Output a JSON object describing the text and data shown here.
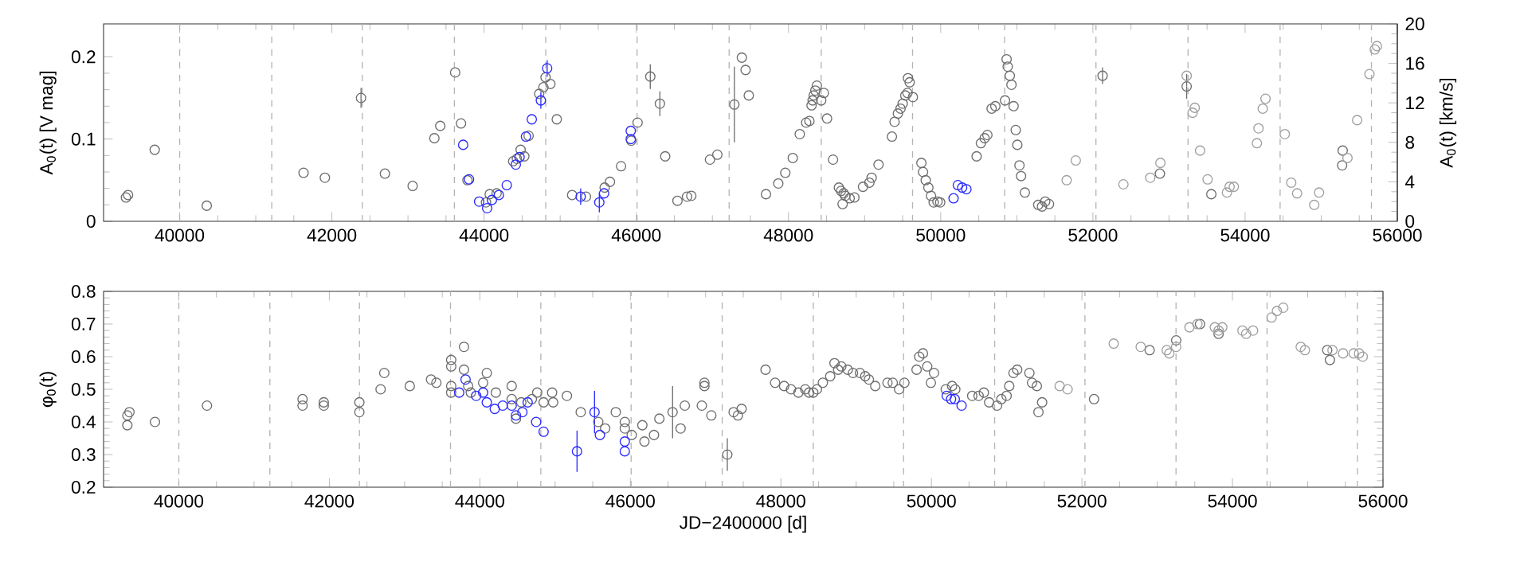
{
  "chart_data": [
    {
      "type": "scatter",
      "ylabel": "A$_{0}$(t) [V mag]",
      "y2label": "A$_{0}$(t) [km/s]",
      "xlim": [
        39000,
        56000
      ],
      "xticks": [
        40000,
        42000,
        44000,
        46000,
        48000,
        50000,
        52000,
        54000,
        56000
      ],
      "ylim": [
        0,
        0.24
      ],
      "yticks": [
        0,
        0.1,
        0.2
      ],
      "y2lim": [
        0,
        20
      ],
      "y2ticks": [
        0,
        4,
        8,
        12,
        16,
        20
      ],
      "series": [
        {
          "color": "#6e6e6e",
          "marker": "circle",
          "x": [
            47289,
            46184,
            46310,
            42383,
            39294,
            39322,
            39672,
            40356,
            41628,
            41908,
            42697,
            43061,
            43347,
            43424,
            43620,
            43697,
            43781,
            44025,
            44074,
            44165,
            44382,
            44431,
            44480,
            44529,
            44585,
            44724,
            44780,
            44808,
            44871,
            44955,
            45157,
            45339,
            45584,
            45654,
            45800,
            45933,
            46017,
            46380,
            46541,
            46667,
            46723,
            46968,
            47065,
            47387,
            47436,
            47478,
            47704,
            47866,
            47958,
            48056,
            48148,
            48232,
            48275,
            48303,
            48317,
            48331,
            48352,
            48373,
            48430,
            48465,
            48507,
            48585,
            48662,
            48690,
            48711,
            48725,
            48746,
            48803,
            48866,
            48979,
            49063,
            49092,
            49183,
            49359,
            49394,
            49437,
            49472,
            49500,
            49535,
            49563,
            49570,
            49592,
            49634,
            49746,
            49768,
            49803,
            49838,
            49873,
            49908,
            49958,
            49993,
            50472,
            50528,
            50577,
            50613,
            50669,
            50718,
            50845,
            50866,
            50880,
            50908,
            50930,
            50958,
            50986,
            51007,
            51035,
            51056,
            51106,
            51282,
            51331,
            51373,
            51423,
            52127,
            52880,
            53232,
            53556,
            55275,
            55282
          ],
          "values": [
            0.142,
            0.176,
            0.143,
            0.15,
            0.029,
            0.032,
            0.087,
            0.019,
            0.059,
            0.053,
            0.058,
            0.043,
            0.101,
            0.116,
            0.181,
            0.119,
            0.05,
            0.023,
            0.033,
            0.034,
            0.073,
            0.076,
            0.087,
            0.079,
            0.104,
            0.155,
            0.163,
            0.175,
            0.167,
            0.124,
            0.032,
            0.03,
            0.041,
            0.048,
            0.067,
            0.098,
            0.12,
            0.079,
            0.025,
            0.03,
            0.031,
            0.075,
            0.081,
            0.199,
            0.184,
            0.153,
            0.033,
            0.046,
            0.059,
            0.077,
            0.106,
            0.12,
            0.122,
            0.141,
            0.147,
            0.153,
            0.159,
            0.165,
            0.147,
            0.156,
            0.125,
            0.075,
            0.041,
            0.037,
            0.021,
            0.034,
            0.031,
            0.028,
            0.029,
            0.042,
            0.047,
            0.053,
            0.069,
            0.103,
            0.121,
            0.131,
            0.137,
            0.143,
            0.153,
            0.156,
            0.174,
            0.169,
            0.151,
            0.071,
            0.06,
            0.05,
            0.041,
            0.031,
            0.023,
            0.024,
            0.023,
            0.079,
            0.095,
            0.101,
            0.105,
            0.137,
            0.14,
            0.147,
            0.197,
            0.188,
            0.177,
            0.166,
            0.14,
            0.111,
            0.093,
            0.068,
            0.055,
            0.035,
            0.02,
            0.018,
            0.024,
            0.021,
            0.177,
            0.058,
            0.164,
            0.033,
            0.068,
            0.086
          ],
          "errors": [
            0.046,
            0.015,
            0.015,
            0.012,
            null,
            null,
            null,
            null,
            null,
            null,
            null,
            null,
            null,
            null,
            null,
            null,
            null,
            null,
            null,
            null,
            null,
            null,
            null,
            null,
            null,
            null,
            null,
            null,
            null,
            null,
            null,
            null,
            null,
            null,
            null,
            null,
            null,
            null,
            null,
            null,
            null,
            null,
            null,
            null,
            null,
            null,
            null,
            null,
            null,
            null,
            null,
            null,
            null,
            null,
            null,
            null,
            null,
            null,
            null,
            null,
            null,
            null,
            null,
            null,
            null,
            null,
            null,
            null,
            null,
            null,
            null,
            null,
            null,
            null,
            null,
            null,
            null,
            null,
            null,
            null,
            null,
            null,
            null,
            null,
            null,
            null,
            null,
            null,
            null,
            null,
            null,
            null,
            null,
            null,
            null,
            null,
            null,
            null,
            null,
            null,
            null,
            null,
            null,
            null,
            null,
            null,
            null,
            null,
            null,
            null,
            null,
            null,
            0.01,
            null,
            0.015,
            null,
            null,
            null
          ]
        },
        {
          "color": "#a0a0a0",
          "marker": "circle",
          "x": [
            51655,
            51775,
            52401,
            52754,
            52887,
            53232,
            53310,
            53338,
            53408,
            53507,
            53761,
            53796,
            53852,
            54155,
            54176,
            54232,
            54268,
            54521,
            54606,
            54683,
            54908,
            54972,
            55345,
            55472,
            55634,
            55704,
            55732
          ],
          "values": [
            0.05,
            0.074,
            0.045,
            0.053,
            0.071,
            0.177,
            0.132,
            0.138,
            0.086,
            0.051,
            0.035,
            0.042,
            0.042,
            0.095,
            0.113,
            0.137,
            0.149,
            0.106,
            0.047,
            0.034,
            0.02,
            0.035,
            0.077,
            0.123,
            0.179,
            0.209,
            0.213
          ]
        },
        {
          "color": "#2b2bff",
          "marker": "circle",
          "x": [
            43725,
            43802,
            43935,
            44040,
            44103,
            44194,
            44298,
            44417,
            44466,
            44550,
            44627,
            44746,
            44829,
            45269,
            45514,
            45577,
            45927,
            45927,
            50169,
            50225,
            50282,
            50338
          ],
          "values": [
            0.093,
            0.051,
            0.024,
            0.016,
            0.026,
            0.032,
            0.044,
            0.069,
            0.078,
            0.103,
            0.124,
            0.147,
            0.186,
            0.03,
            0.023,
            0.034,
            0.11,
            0.1,
            0.028,
            0.044,
            0.041,
            0.039
          ],
          "errors": [
            null,
            null,
            null,
            null,
            null,
            null,
            null,
            null,
            null,
            null,
            null,
            0.01,
            0.01,
            0.01,
            0.012,
            null,
            null,
            null,
            null,
            null,
            null,
            null
          ]
        }
      ],
      "ref_lines": [
        {
          "axis": "x",
          "value": 40000,
          "color": "#b4b4b4",
          "line_style": "dashed"
        },
        {
          "axis": "x",
          "value": 41210,
          "color": "#b4b4b4",
          "line_style": "dashed"
        },
        {
          "axis": "x",
          "value": 42400,
          "color": "#b4b4b4",
          "line_style": "dashed"
        },
        {
          "axis": "x",
          "value": 43610,
          "color": "#b4b4b4",
          "line_style": "dashed"
        },
        {
          "axis": "x",
          "value": 44810,
          "color": "#b4b4b4",
          "line_style": "dashed"
        },
        {
          "axis": "x",
          "value": 46010,
          "color": "#b4b4b4",
          "line_style": "dashed"
        },
        {
          "axis": "x",
          "value": 47220,
          "color": "#b4b4b4",
          "line_style": "dashed"
        },
        {
          "axis": "x",
          "value": 48430,
          "color": "#b4b4b4",
          "line_style": "dashed"
        },
        {
          "axis": "x",
          "value": 49630,
          "color": "#b4b4b4",
          "line_style": "dashed"
        },
        {
          "axis": "x",
          "value": 50840,
          "color": "#b4b4b4",
          "line_style": "dashed"
        },
        {
          "axis": "x",
          "value": 52040,
          "color": "#b4b4b4",
          "line_style": "dashed"
        },
        {
          "axis": "x",
          "value": 53250,
          "color": "#b4b4b4",
          "line_style": "dashed"
        },
        {
          "axis": "x",
          "value": 54460,
          "color": "#b4b4b4",
          "line_style": "dashed"
        },
        {
          "axis": "x",
          "value": 55660,
          "color": "#b4b4b4",
          "line_style": "dashed"
        }
      ]
    },
    {
      "type": "scatter",
      "xlabel": "JD−2400000 [d]",
      "ylabel": "φ$_{0}$(t)",
      "xlim": [
        39000,
        56000
      ],
      "xticks": [
        40000,
        42000,
        44000,
        46000,
        48000,
        50000,
        52000,
        54000,
        56000
      ],
      "ylim": [
        0.2,
        0.8
      ],
      "yticks": [
        0.2,
        0.3,
        0.4,
        0.5,
        0.6,
        0.7,
        0.8
      ],
      "series": [
        {
          "color": "#6e6e6e",
          "marker": "circle",
          "x": [
            47288,
            46561,
            39316,
            39344,
            39316,
            39683,
            40374,
            41644,
            41644,
            41926,
            41926,
            42399,
            42399,
            42681,
            42730,
            43069,
            43351,
            43422,
            43619,
            43619,
            43619,
            43619,
            43789,
            43789,
            43845,
            43880,
            44043,
            44092,
            44212,
            44423,
            44423,
            44480,
            44550,
            44691,
            44762,
            44847,
            44960,
            44974,
            45157,
            45340,
            45573,
            45665,
            45806,
            45926,
            45926,
            46018,
            46159,
            46187,
            46314,
            46385,
            46667,
            46723,
            46949,
            46984,
            46984,
            47076,
            47372,
            47429,
            47478,
            47796,
            47923,
            48043,
            48134,
            48233,
            48324,
            48374,
            48430,
            48479,
            48557,
            48655,
            48712,
            48761,
            48803,
            48888,
            48958,
            49050,
            49120,
            49169,
            49254,
            49416,
            49486,
            49571,
            49641,
            49803,
            49838,
            49887,
            49944,
            49993,
            50035,
            50190,
            50275,
            50317,
            50542,
            50627,
            50697,
            50767,
            50873,
            50929,
            50999,
            51034,
            51091,
            51140,
            51302,
            51337,
            51401,
            51422,
            51471,
            52161,
            52900,
            53252,
            53569,
            53816,
            55259,
            55295
          ],
          "values": [
            0.3,
            0.43,
            0.42,
            0.43,
            0.39,
            0.4,
            0.45,
            0.47,
            0.45,
            0.46,
            0.45,
            0.46,
            0.43,
            0.5,
            0.55,
            0.51,
            0.53,
            0.52,
            0.59,
            0.57,
            0.51,
            0.49,
            0.63,
            0.56,
            0.51,
            0.49,
            0.52,
            0.55,
            0.49,
            0.51,
            0.47,
            0.41,
            0.46,
            0.47,
            0.49,
            0.46,
            0.49,
            0.46,
            0.48,
            0.43,
            0.4,
            0.38,
            0.43,
            0.4,
            0.38,
            0.36,
            0.39,
            0.34,
            0.36,
            0.41,
            0.38,
            0.45,
            0.45,
            0.52,
            0.51,
            0.42,
            0.43,
            0.42,
            0.44,
            0.56,
            0.52,
            0.51,
            0.5,
            0.49,
            0.5,
            0.49,
            0.49,
            0.5,
            0.52,
            0.54,
            0.58,
            0.56,
            0.57,
            0.56,
            0.55,
            0.55,
            0.54,
            0.53,
            0.51,
            0.52,
            0.52,
            0.5,
            0.52,
            0.56,
            0.6,
            0.61,
            0.57,
            0.52,
            0.55,
            0.5,
            0.51,
            0.5,
            0.48,
            0.48,
            0.49,
            0.46,
            0.45,
            0.47,
            0.48,
            0.51,
            0.55,
            0.56,
            0.55,
            0.52,
            0.51,
            0.43,
            0.46,
            0.47,
            0.62,
            0.65,
            0.7,
            0.67,
            0.62,
            0.59
          ],
          "errors": [
            0.05,
            0.08,
            null,
            null,
            null,
            null,
            null,
            null,
            null,
            null,
            null,
            null,
            null,
            null,
            null,
            null,
            null,
            null,
            null,
            null,
            null,
            null,
            null,
            null,
            null,
            null,
            null,
            null,
            null,
            null,
            null,
            null,
            null,
            null,
            null,
            null,
            null,
            null,
            null,
            null,
            null,
            null,
            null,
            null,
            null,
            null,
            null,
            null,
            null,
            null,
            null,
            null,
            null,
            null,
            null,
            null,
            null,
            null,
            null,
            null,
            null,
            null,
            null,
            null,
            null,
            null,
            null,
            null,
            null,
            null,
            null,
            null,
            null,
            null,
            null,
            null,
            null,
            null,
            null,
            null,
            null,
            null,
            null,
            null,
            null,
            null,
            null,
            null,
            null,
            null,
            null,
            null,
            null,
            null,
            null,
            null,
            null,
            null,
            null,
            null,
            null,
            null,
            null,
            null,
            null,
            null,
            null,
            null,
            null,
            null,
            null,
            null,
            null,
            null
          ]
        },
        {
          "color": "#a0a0a0",
          "marker": "circle",
          "x": [
            51704,
            51809,
            52422,
            52781,
            53126,
            53161,
            53252,
            53429,
            53534,
            53766,
            53816,
            53865,
            54133,
            54182,
            54274,
            54520,
            54591,
            54675,
            54907,
            54963,
            55329,
            55470,
            55611,
            55682,
            55731
          ],
          "values": [
            0.51,
            0.5,
            0.64,
            0.63,
            0.62,
            0.61,
            0.63,
            0.69,
            0.7,
            0.69,
            0.68,
            0.69,
            0.68,
            0.67,
            0.68,
            0.72,
            0.74,
            0.75,
            0.63,
            0.62,
            0.62,
            0.61,
            0.61,
            0.61,
            0.6
          ]
        },
        {
          "color": "#2b2bff",
          "marker": "circle",
          "x": [
            43725,
            43810,
            43951,
            44043,
            44092,
            44198,
            44304,
            44423,
            44480,
            44565,
            44635,
            44748,
            44847,
            45291,
            45524,
            45595,
            45926,
            45926,
            50204,
            50261,
            50310,
            50401
          ],
          "values": [
            0.49,
            0.53,
            0.48,
            0.49,
            0.46,
            0.44,
            0.45,
            0.45,
            0.42,
            0.43,
            0.46,
            0.4,
            0.37,
            0.31,
            0.43,
            0.36,
            0.34,
            0.31,
            0.48,
            0.47,
            0.47,
            0.45
          ],
          "errors": [
            null,
            null,
            null,
            null,
            null,
            null,
            null,
            null,
            null,
            null,
            null,
            null,
            null,
            0.063,
            0.065,
            null,
            null,
            null,
            null,
            null,
            null,
            null
          ]
        }
      ],
      "ref_lines": [
        {
          "axis": "x",
          "value": 40000,
          "color": "#b4b4b4",
          "line_style": "dashed"
        },
        {
          "axis": "x",
          "value": 41210,
          "color": "#b4b4b4",
          "line_style": "dashed"
        },
        {
          "axis": "x",
          "value": 42400,
          "color": "#b4b4b4",
          "line_style": "dashed"
        },
        {
          "axis": "x",
          "value": 43610,
          "color": "#b4b4b4",
          "line_style": "dashed"
        },
        {
          "axis": "x",
          "value": 44810,
          "color": "#b4b4b4",
          "line_style": "dashed"
        },
        {
          "axis": "x",
          "value": 46010,
          "color": "#b4b4b4",
          "line_style": "dashed"
        },
        {
          "axis": "x",
          "value": 47220,
          "color": "#b4b4b4",
          "line_style": "dashed"
        },
        {
          "axis": "x",
          "value": 48430,
          "color": "#b4b4b4",
          "line_style": "dashed"
        },
        {
          "axis": "x",
          "value": 49630,
          "color": "#b4b4b4",
          "line_style": "dashed"
        },
        {
          "axis": "x",
          "value": 50840,
          "color": "#b4b4b4",
          "line_style": "dashed"
        },
        {
          "axis": "x",
          "value": 52040,
          "color": "#b4b4b4",
          "line_style": "dashed"
        },
        {
          "axis": "x",
          "value": 53250,
          "color": "#b4b4b4",
          "line_style": "dashed"
        },
        {
          "axis": "x",
          "value": 54460,
          "color": "#b4b4b4",
          "line_style": "dashed"
        },
        {
          "axis": "x",
          "value": 55660,
          "color": "#b4b4b4",
          "line_style": "dashed"
        }
      ]
    }
  ]
}
